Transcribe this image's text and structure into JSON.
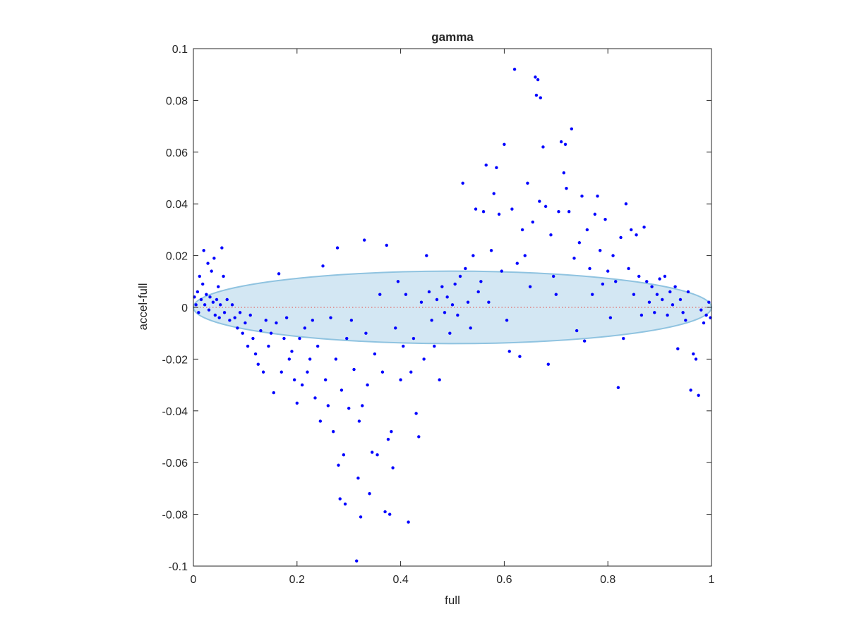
{
  "figure": {
    "title": "gamma",
    "xlabel": "full",
    "ylabel": "accel-full"
  },
  "colors": {
    "points": "#0000ff",
    "ellipse_fill": "#d3e7f3",
    "ellipse_stroke": "#8fc3e0",
    "zero_line": "#e08080",
    "axes": "#262626"
  },
  "chart_data": {
    "type": "scatter",
    "title": "gamma",
    "xlabel": "full",
    "ylabel": "accel-full",
    "xlim": [
      0,
      1
    ],
    "ylim": [
      -0.1,
      0.1
    ],
    "x_ticks": [
      0,
      0.2,
      0.4,
      0.6,
      0.8,
      1
    ],
    "x_tick_labels": [
      "0",
      "0.2",
      "0.4",
      "0.6",
      "0.8",
      "1"
    ],
    "y_ticks": [
      -0.1,
      -0.08,
      -0.06,
      -0.04,
      -0.02,
      0,
      0.02,
      0.04,
      0.06,
      0.08,
      0.1
    ],
    "y_tick_labels": [
      "-0.1",
      "-0.08",
      "-0.06",
      "-0.04",
      "-0.02",
      "0",
      "0.02",
      "0.04",
      "0.06",
      "0.08",
      "0.1"
    ],
    "grid": false,
    "legend": "none",
    "reference_line": {
      "y": 0,
      "style": "dotted"
    },
    "confidence_ellipse": {
      "cx": 0.5,
      "cy": 0.0,
      "rx": 0.5,
      "ry": 0.014
    },
    "series": [
      {
        "marker": "dot",
        "points": [
          [
            0.002,
            0.004
          ],
          [
            0.005,
            0.001
          ],
          [
            0.008,
            0.006
          ],
          [
            0.01,
            -0.002
          ],
          [
            0.012,
            0.012
          ],
          [
            0.015,
            0.003
          ],
          [
            0.018,
            0.009
          ],
          [
            0.02,
            0.022
          ],
          [
            0.022,
            0.001
          ],
          [
            0.025,
            0.005
          ],
          [
            0.028,
            0.017
          ],
          [
            0.03,
            -0.001
          ],
          [
            0.032,
            0.004
          ],
          [
            0.035,
            0.014
          ],
          [
            0.038,
            0.002
          ],
          [
            0.04,
            0.019
          ],
          [
            0.042,
            -0.003
          ],
          [
            0.045,
            0.003
          ],
          [
            0.048,
            0.008
          ],
          [
            0.05,
            -0.004
          ],
          [
            0.052,
            0.001
          ],
          [
            0.055,
            0.023
          ],
          [
            0.058,
            0.012
          ],
          [
            0.06,
            -0.002
          ],
          [
            0.065,
            0.003
          ],
          [
            0.07,
            -0.005
          ],
          [
            0.075,
            0.001
          ],
          [
            0.08,
            -0.004
          ],
          [
            0.085,
            -0.008
          ],
          [
            0.09,
            -0.002
          ],
          [
            0.095,
            -0.01
          ],
          [
            0.1,
            -0.006
          ],
          [
            0.105,
            -0.015
          ],
          [
            0.11,
            -0.003
          ],
          [
            0.115,
            -0.012
          ],
          [
            0.12,
            -0.018
          ],
          [
            0.125,
            -0.022
          ],
          [
            0.13,
            -0.009
          ],
          [
            0.135,
            -0.025
          ],
          [
            0.14,
            -0.005
          ],
          [
            0.145,
            -0.015
          ],
          [
            0.15,
            -0.01
          ],
          [
            0.155,
            -0.033
          ],
          [
            0.16,
            -0.006
          ],
          [
            0.165,
            0.013
          ],
          [
            0.17,
            -0.025
          ],
          [
            0.175,
            -0.012
          ],
          [
            0.18,
            -0.004
          ],
          [
            0.185,
            -0.02
          ],
          [
            0.19,
            -0.017
          ],
          [
            0.195,
            -0.028
          ],
          [
            0.2,
            -0.037
          ],
          [
            0.205,
            -0.012
          ],
          [
            0.21,
            -0.03
          ],
          [
            0.215,
            -0.008
          ],
          [
            0.22,
            -0.025
          ],
          [
            0.225,
            -0.02
          ],
          [
            0.23,
            -0.005
          ],
          [
            0.235,
            -0.035
          ],
          [
            0.24,
            -0.015
          ],
          [
            0.245,
            -0.044
          ],
          [
            0.25,
            0.016
          ],
          [
            0.255,
            -0.028
          ],
          [
            0.26,
            -0.038
          ],
          [
            0.265,
            -0.004
          ],
          [
            0.27,
            -0.048
          ],
          [
            0.275,
            -0.02
          ],
          [
            0.278,
            0.023
          ],
          [
            0.28,
            -0.061
          ],
          [
            0.283,
            -0.074
          ],
          [
            0.286,
            -0.032
          ],
          [
            0.29,
            -0.057
          ],
          [
            0.293,
            -0.076
          ],
          [
            0.296,
            -0.012
          ],
          [
            0.3,
            -0.039
          ],
          [
            0.305,
            -0.005
          ],
          [
            0.31,
            -0.024
          ],
          [
            0.315,
            -0.098
          ],
          [
            0.318,
            -0.066
          ],
          [
            0.32,
            -0.044
          ],
          [
            0.323,
            -0.081
          ],
          [
            0.326,
            -0.038
          ],
          [
            0.33,
            0.026
          ],
          [
            0.333,
            -0.01
          ],
          [
            0.336,
            -0.03
          ],
          [
            0.34,
            -0.072
          ],
          [
            0.345,
            -0.056
          ],
          [
            0.35,
            -0.018
          ],
          [
            0.355,
            -0.057
          ],
          [
            0.36,
            0.005
          ],
          [
            0.365,
            -0.025
          ],
          [
            0.37,
            -0.079
          ],
          [
            0.373,
            0.024
          ],
          [
            0.376,
            -0.051
          ],
          [
            0.379,
            -0.08
          ],
          [
            0.382,
            -0.048
          ],
          [
            0.385,
            -0.062
          ],
          [
            0.39,
            -0.008
          ],
          [
            0.395,
            0.01
          ],
          [
            0.4,
            -0.028
          ],
          [
            0.405,
            -0.015
          ],
          [
            0.41,
            0.005
          ],
          [
            0.415,
            -0.083
          ],
          [
            0.42,
            -0.025
          ],
          [
            0.425,
            -0.012
          ],
          [
            0.43,
            -0.041
          ],
          [
            0.435,
            -0.05
          ],
          [
            0.44,
            0.002
          ],
          [
            0.445,
            -0.02
          ],
          [
            0.45,
            0.02
          ],
          [
            0.455,
            0.006
          ],
          [
            0.46,
            -0.005
          ],
          [
            0.465,
            -0.015
          ],
          [
            0.47,
            0.003
          ],
          [
            0.475,
            -0.028
          ],
          [
            0.48,
            0.008
          ],
          [
            0.485,
            -0.002
          ],
          [
            0.49,
            0.004
          ],
          [
            0.495,
            -0.01
          ],
          [
            0.5,
            0.001
          ],
          [
            0.505,
            0.009
          ],
          [
            0.51,
            -0.003
          ],
          [
            0.515,
            0.012
          ],
          [
            0.52,
            0.048
          ],
          [
            0.525,
            0.015
          ],
          [
            0.53,
            0.002
          ],
          [
            0.535,
            -0.008
          ],
          [
            0.54,
            0.02
          ],
          [
            0.545,
            0.038
          ],
          [
            0.55,
            0.006
          ],
          [
            0.555,
            0.01
          ],
          [
            0.56,
            0.037
          ],
          [
            0.565,
            0.055
          ],
          [
            0.57,
            0.002
          ],
          [
            0.575,
            0.022
          ],
          [
            0.58,
            0.044
          ],
          [
            0.585,
            0.054
          ],
          [
            0.59,
            0.036
          ],
          [
            0.595,
            0.014
          ],
          [
            0.6,
            0.063
          ],
          [
            0.605,
            -0.005
          ],
          [
            0.61,
            -0.017
          ],
          [
            0.615,
            0.038
          ],
          [
            0.62,
            0.092
          ],
          [
            0.625,
            0.017
          ],
          [
            0.63,
            -0.019
          ],
          [
            0.635,
            0.03
          ],
          [
            0.64,
            0.02
          ],
          [
            0.645,
            0.048
          ],
          [
            0.65,
            0.008
          ],
          [
            0.655,
            0.033
          ],
          [
            0.66,
            0.089
          ],
          [
            0.662,
            0.082
          ],
          [
            0.665,
            0.088
          ],
          [
            0.668,
            0.041
          ],
          [
            0.67,
            0.081
          ],
          [
            0.675,
            0.062
          ],
          [
            0.68,
            0.039
          ],
          [
            0.685,
            -0.022
          ],
          [
            0.69,
            0.028
          ],
          [
            0.695,
            0.012
          ],
          [
            0.7,
            0.005
          ],
          [
            0.705,
            0.037
          ],
          [
            0.71,
            0.064
          ],
          [
            0.715,
            0.052
          ],
          [
            0.718,
            0.063
          ],
          [
            0.72,
            0.046
          ],
          [
            0.725,
            0.037
          ],
          [
            0.73,
            0.069
          ],
          [
            0.735,
            0.019
          ],
          [
            0.74,
            -0.009
          ],
          [
            0.745,
            0.025
          ],
          [
            0.75,
            0.043
          ],
          [
            0.755,
            -0.013
          ],
          [
            0.76,
            0.03
          ],
          [
            0.765,
            0.015
          ],
          [
            0.77,
            0.005
          ],
          [
            0.775,
            0.036
          ],
          [
            0.78,
            0.043
          ],
          [
            0.785,
            0.022
          ],
          [
            0.79,
            0.009
          ],
          [
            0.795,
            0.034
          ],
          [
            0.8,
            0.014
          ],
          [
            0.805,
            -0.004
          ],
          [
            0.81,
            0.02
          ],
          [
            0.815,
            0.01
          ],
          [
            0.82,
            -0.031
          ],
          [
            0.825,
            0.027
          ],
          [
            0.83,
            -0.012
          ],
          [
            0.835,
            0.04
          ],
          [
            0.84,
            0.015
          ],
          [
            0.845,
            0.03
          ],
          [
            0.85,
            0.005
          ],
          [
            0.855,
            0.028
          ],
          [
            0.86,
            0.012
          ],
          [
            0.865,
            -0.003
          ],
          [
            0.87,
            0.031
          ],
          [
            0.875,
            0.01
          ],
          [
            0.88,
            0.002
          ],
          [
            0.885,
            0.008
          ],
          [
            0.89,
            -0.002
          ],
          [
            0.895,
            0.005
          ],
          [
            0.9,
            0.011
          ],
          [
            0.905,
            0.003
          ],
          [
            0.91,
            0.012
          ],
          [
            0.915,
            -0.003
          ],
          [
            0.92,
            0.006
          ],
          [
            0.925,
            0.001
          ],
          [
            0.93,
            0.008
          ],
          [
            0.935,
            -0.016
          ],
          [
            0.94,
            0.003
          ],
          [
            0.945,
            -0.002
          ],
          [
            0.95,
            -0.005
          ],
          [
            0.955,
            0.006
          ],
          [
            0.96,
            -0.032
          ],
          [
            0.965,
            -0.018
          ],
          [
            0.97,
            -0.02
          ],
          [
            0.975,
            -0.034
          ],
          [
            0.98,
            -0.001
          ],
          [
            0.985,
            -0.006
          ],
          [
            0.99,
            -0.003
          ],
          [
            0.995,
            0.002
          ],
          [
            0.998,
            -0.004
          ]
        ]
      }
    ]
  }
}
